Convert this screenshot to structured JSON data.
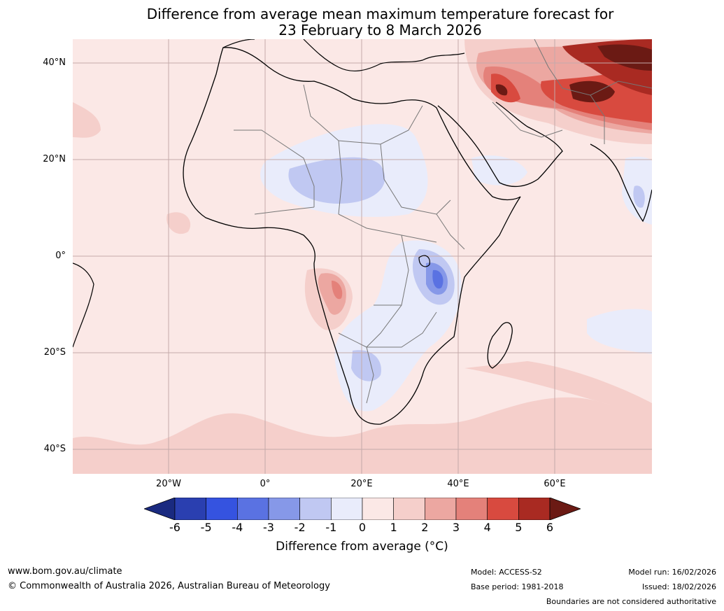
{
  "title": {
    "line1": "Difference from average mean maximum temperature forecast for",
    "line2": "23 February to 8 March 2026"
  },
  "map": {
    "lat_labels": [
      "40°N",
      "20°N",
      "0°",
      "20°S",
      "40°S"
    ],
    "lon_labels": [
      "20°W",
      "0°",
      "20°E",
      "40°E",
      "60°E"
    ]
  },
  "colorbar": {
    "ticks": [
      "-6",
      "-5",
      "-4",
      "-3",
      "-2",
      "-1",
      "0",
      "1",
      "2",
      "3",
      "4",
      "5",
      "6"
    ],
    "label": "Difference from average (°C)",
    "colors": [
      "#1a2a80",
      "#2a3fb0",
      "#3553e0",
      "#5a72e2",
      "#8698e8",
      "#c0c8f2",
      "#e9ecfb",
      "#fbe8e6",
      "#f5cfcb",
      "#eca7a1",
      "#e4817a",
      "#d84a3f",
      "#a92a22",
      "#6b1a14"
    ]
  },
  "footer": {
    "website": "www.bom.gov.au/climate",
    "copyright": "© Commonwealth of Australia 2026, Australian Bureau of Meteorology",
    "model": "Model: ACCESS-S2",
    "base_period": "Base period: 1981-2018",
    "model_run": "Model run: 16/02/2026",
    "issued": "Issued: 18/02/2026",
    "boundaries": "Boundaries are not considered authoritative"
  }
}
